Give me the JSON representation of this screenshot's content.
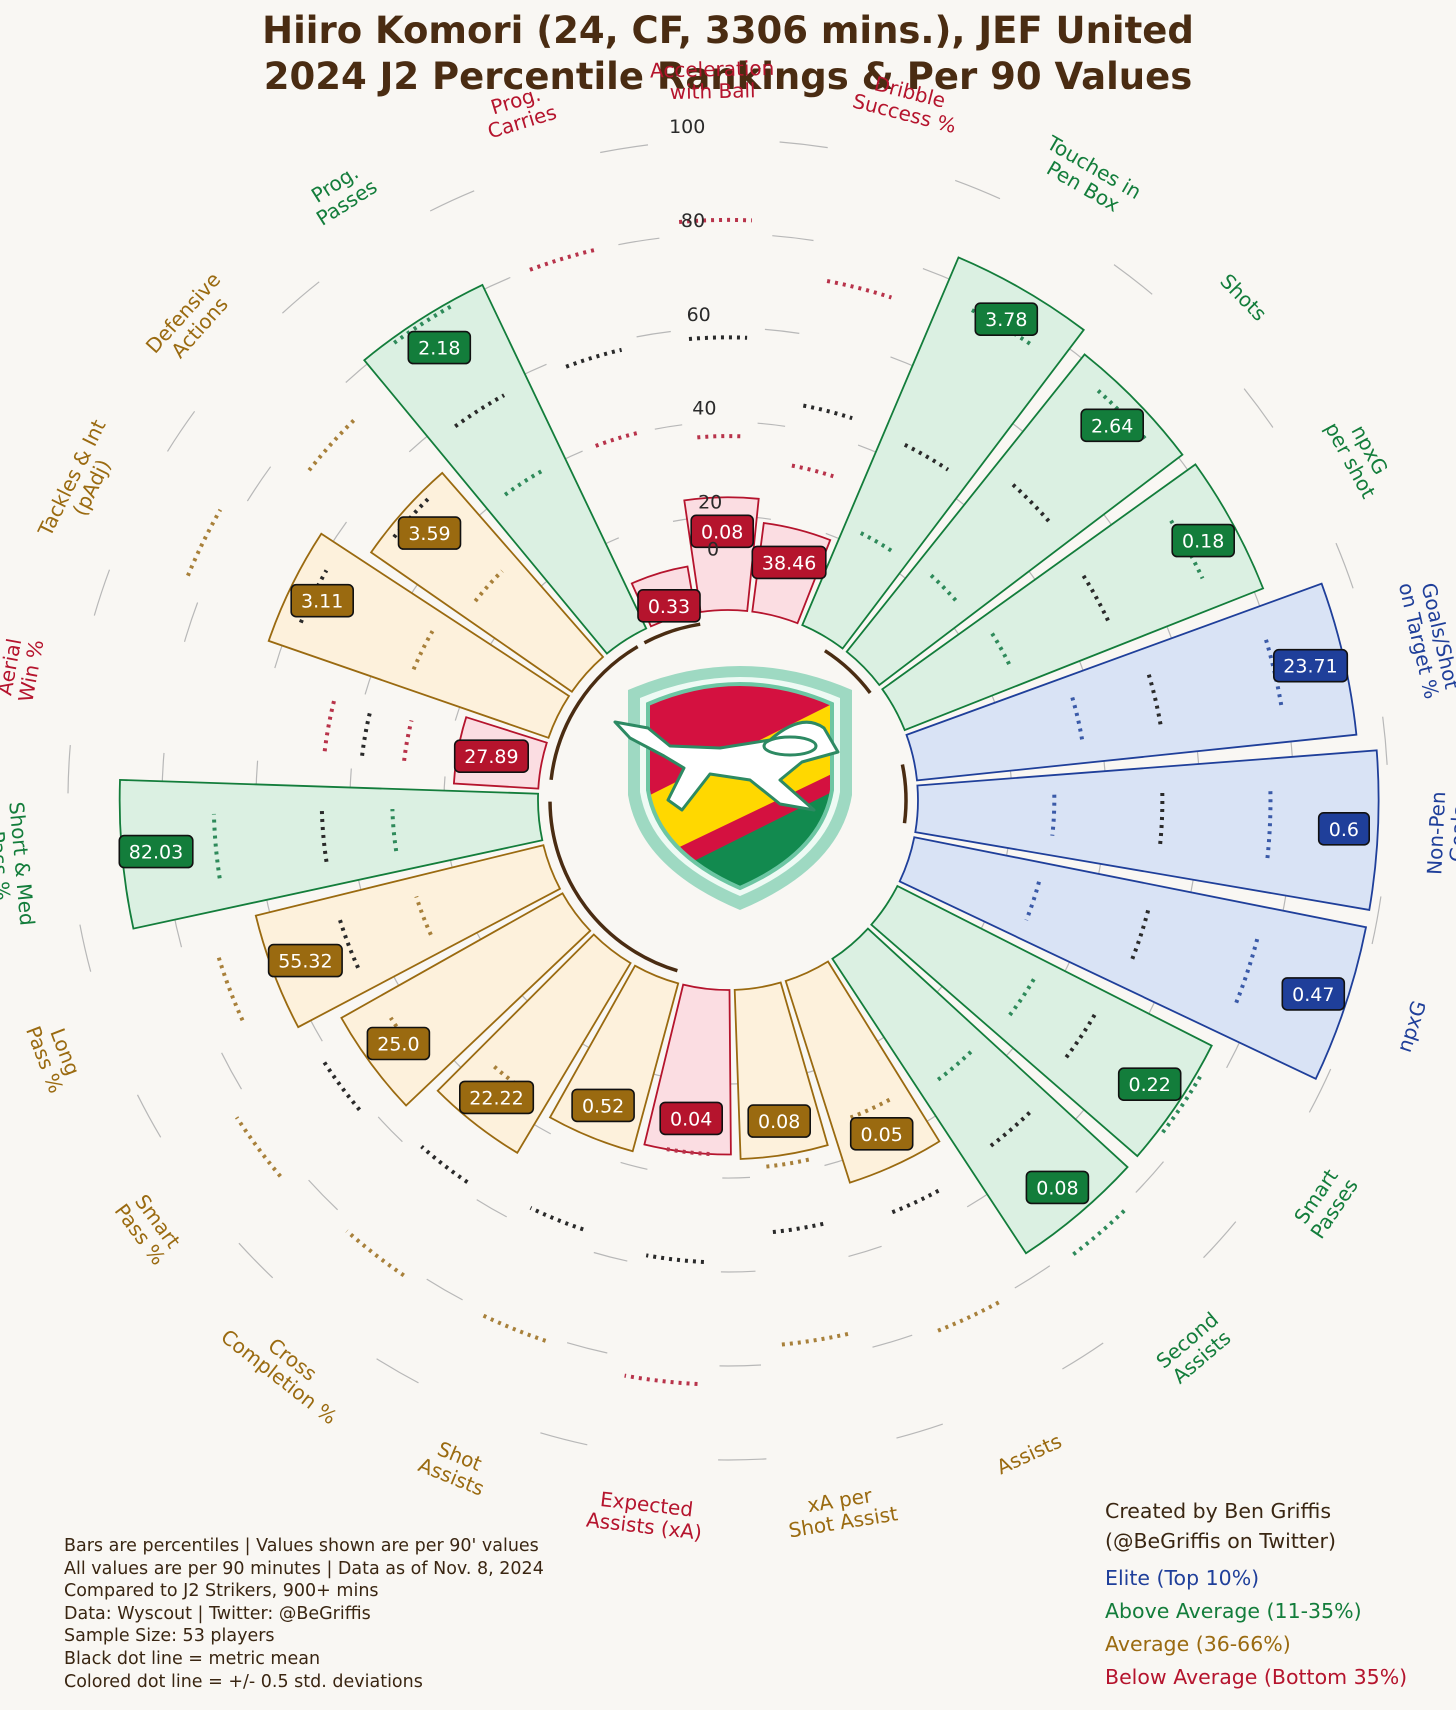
{
  "title": {
    "line1": "Hiiro Komori (24, CF, 3306 mins.), JEF United",
    "line2": "2024 J2 Percentile Rankings & Per 90 Values"
  },
  "colors": {
    "elite": "#1f3f9a",
    "above": "#137d3b",
    "average": "#9a6a10",
    "below": "#b5142d",
    "text": "#4a2c12",
    "background": "#f9f7f3"
  },
  "crest": {
    "icon": "jef-united-crest-icon"
  },
  "chart_data": {
    "type": "radial-bar",
    "scale_ticks": [
      0,
      20,
      40,
      60,
      80,
      100
    ],
    "rlim": [
      0,
      100
    ],
    "metrics": [
      {
        "label": "Aerial\nWin %",
        "percentile": 18,
        "value": "27.89",
        "tier": "below",
        "mean_pct": 38,
        "band": [
          29,
          46
        ]
      },
      {
        "label": "Tackles & Int\n(pAdj)",
        "percentile": 63,
        "value": "3.11",
        "tier": "average",
        "mean_pct": 58,
        "band": [
          32,
          84
        ]
      },
      {
        "label": "Defensive\nActions",
        "percentile": 52,
        "value": "3.59",
        "tier": "average",
        "mean_pct": 50,
        "band": [
          28,
          73
        ]
      },
      {
        "label": "Prog.\nPasses",
        "percentile": 81,
        "value": "2.18",
        "tier": "above",
        "mean_pct": 58,
        "band": [
          40,
          80
        ]
      },
      {
        "label": "Prog.\nCarries",
        "percentile": 10,
        "value": "0.33",
        "tier": "below",
        "mean_pct": 58,
        "band": [
          40,
          80
        ]
      },
      {
        "label": "Acceleration\nwith Ball",
        "percentile": 24,
        "value": "0.08",
        "tier": "below",
        "mean_pct": 58,
        "band": [
          37,
          83
        ]
      },
      {
        "label": "Dribble\nSuccess %",
        "percentile": 19,
        "value": "38.46",
        "tier": "below",
        "mean_pct": 45,
        "band": [
          32,
          72
        ]
      },
      {
        "label": "Touches in\nPen Box",
        "percentile": 85,
        "value": "3.78",
        "tier": "above",
        "mean_pct": 44,
        "band": [
          23,
          76
        ]
      },
      {
        "label": "Shots",
        "percentile": 81,
        "value": "2.64",
        "tier": "above",
        "mean_pct": 50,
        "band": [
          24,
          77
        ]
      },
      {
        "label": "npxG\nper shot",
        "percentile": 82,
        "value": "0.18",
        "tier": "above",
        "mean_pct": 49,
        "band": [
          26,
          71
        ]
      },
      {
        "label": "Goals/Shot\non Target %",
        "percentile": 94,
        "value": "23.71",
        "tier": "elite",
        "mean_pct": 53,
        "band": [
          36,
          79
        ]
      },
      {
        "label": "Non-Pen\nGoals",
        "percentile": 98,
        "value": "0.6",
        "tier": "elite",
        "mean_pct": 52,
        "band": [
          29,
          75
        ]
      },
      {
        "label": "npxG",
        "percentile": 98,
        "value": "0.47",
        "tier": "elite",
        "mean_pct": 52,
        "band": [
          28,
          76
        ]
      },
      {
        "label": "Smart\nPasses",
        "percentile": 75,
        "value": "0.22",
        "tier": "above",
        "mean_pct": 50,
        "band": [
          35,
          76
        ]
      },
      {
        "label": "Second\nAssists",
        "percentile": 75,
        "value": "0.08",
        "tier": "above",
        "mean_pct": 52,
        "band": [
          34,
          81
        ]
      },
      {
        "label": "Assists",
        "percentile": 45,
        "value": "0.05",
        "tier": "average",
        "mean_pct": 54,
        "band": [
          32,
          81
        ]
      },
      {
        "label": "xA per\nShot Assist",
        "percentile": 36,
        "value": "0.08",
        "tier": "average",
        "mean_pct": 52,
        "band": [
          38,
          76
        ]
      },
      {
        "label": "Expected\nAssists (xA)",
        "percentile": 35,
        "value": "0.04",
        "tier": "below",
        "mean_pct": 58,
        "band": [
          35,
          84
        ]
      },
      {
        "label": "Shot\nAssists",
        "percentile": 37,
        "value": "0.52",
        "tier": "average",
        "mean_pct": 56,
        "band": [
          30,
          81
        ]
      },
      {
        "label": "Cross\nCompletion %",
        "percentile": 47,
        "value": "22.22",
        "tier": "average",
        "mean_pct": 58,
        "band": [
          35,
          82
        ]
      },
      {
        "label": "Smart\nPass %",
        "percentile": 54,
        "value": "25.0",
        "tier": "average",
        "mean_pct": 62,
        "band": [
          45,
          84
        ]
      },
      {
        "label": "Long\nPass %",
        "percentile": 63,
        "value": "55.32",
        "tier": "average",
        "mean_pct": 46,
        "band": [
          29,
          73
        ]
      },
      {
        "label": "Short & Med\nPass %",
        "percentile": 89,
        "value": "82.03",
        "tier": "above",
        "mean_pct": 46,
        "band": [
          31,
          69
        ]
      }
    ]
  },
  "notes": {
    "line1": "Bars are percentiles | Values shown are per 90' values",
    "line2": "All values are per 90 minutes | Data as of Nov. 8, 2024",
    "line3": "Compared to J2 Strikers, 900+ mins",
    "line4": "Data: Wyscout | Twitter: @BeGriffis",
    "line5": "Sample Size: 53 players",
    "line6": "Black dot line = metric mean",
    "line7": "Colored dot line = +/- 0.5 std. deviations"
  },
  "credit": {
    "line1": "Created by Ben Griffis",
    "line2": "(@BeGriffis on Twitter)"
  },
  "legend": {
    "elite": "Elite (Top 10%)",
    "above": "Above Average (11-35%)",
    "average": "Average (36-66%)",
    "below": "Below Average (Bottom 35%)"
  }
}
